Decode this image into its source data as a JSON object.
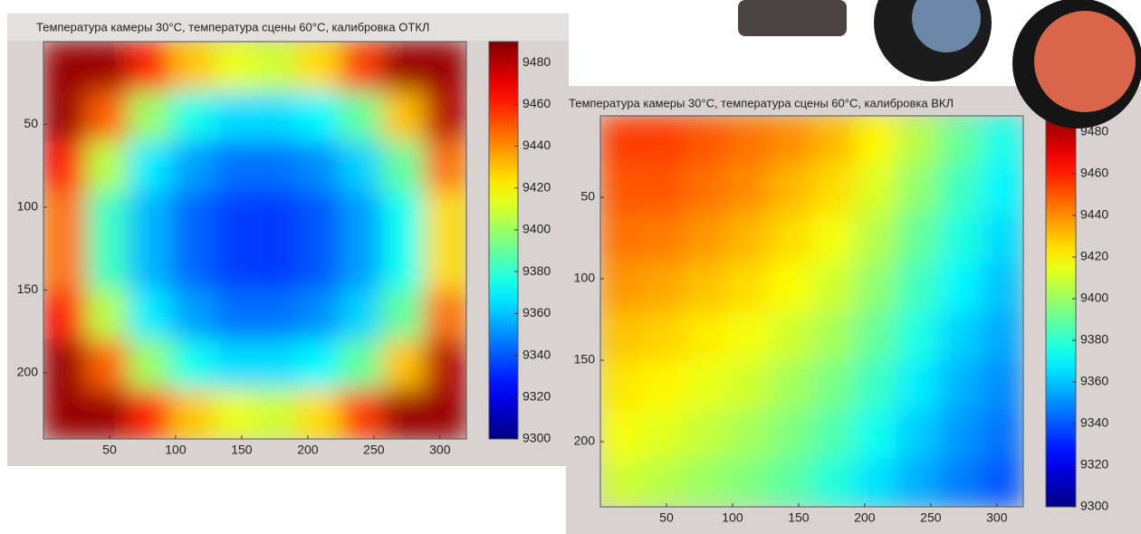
{
  "chart_data": [
    {
      "type": "heatmap",
      "title": "Температура камеры 30°C, температура сцены 60°C, калибровка ОТКЛ",
      "xlim": [
        0,
        320
      ],
      "xticks": [
        50,
        100,
        150,
        200,
        250,
        300
      ],
      "ylim": [
        0,
        240
      ],
      "yticks": [
        50,
        100,
        150,
        200
      ],
      "y_reversed": true,
      "colormap": "jet",
      "clim": [
        9300,
        9490
      ],
      "cticks": [
        9300,
        9320,
        9340,
        9360,
        9380,
        9400,
        9420,
        9440,
        9460,
        9480
      ],
      "values": [
        [
          9485,
          9485,
          9460,
          9430,
          9415,
          9410,
          9425,
          9455,
          9485,
          9485
        ],
        [
          9485,
          9448,
          9400,
          9375,
          9365,
          9365,
          9370,
          9390,
          9430,
          9480
        ],
        [
          9465,
          9405,
          9368,
          9354,
          9345,
          9345,
          9350,
          9363,
          9390,
          9445
        ],
        [
          9445,
          9383,
          9358,
          9343,
          9335,
          9334,
          9340,
          9353,
          9374,
          9425
        ],
        [
          9445,
          9383,
          9358,
          9343,
          9335,
          9334,
          9340,
          9353,
          9374,
          9425
        ],
        [
          9465,
          9405,
          9368,
          9354,
          9345,
          9345,
          9350,
          9363,
          9390,
          9445
        ],
        [
          9485,
          9448,
          9400,
          9375,
          9365,
          9365,
          9370,
          9390,
          9430,
          9480
        ],
        [
          9485,
          9485,
          9460,
          9430,
          9415,
          9410,
          9425,
          9455,
          9485,
          9485
        ]
      ]
    },
    {
      "type": "heatmap",
      "title": "Температура камеры 30°C, температура сцены 60°C, калибровка ВКЛ",
      "xlim": [
        0,
        320
      ],
      "xticks": [
        50,
        100,
        150,
        200,
        250,
        300
      ],
      "ylim": [
        0,
        240
      ],
      "yticks": [
        50,
        100,
        150,
        200
      ],
      "y_reversed": true,
      "colormap": "jet",
      "clim": [
        9300,
        9490
      ],
      "cticks": [
        9300,
        9320,
        9340,
        9360,
        9380,
        9400,
        9420,
        9440,
        9460,
        9480
      ],
      "values": [
        [
          9455,
          9455,
          9450,
          9445,
          9440,
          9432,
          9420,
          9405,
          9390,
          9375
        ],
        [
          9450,
          9450,
          9445,
          9440,
          9432,
          9425,
          9412,
          9398,
          9383,
          9370
        ],
        [
          9445,
          9443,
          9438,
          9432,
          9425,
          9417,
          9405,
          9390,
          9377,
          9365
        ],
        [
          9438,
          9435,
          9430,
          9425,
          9418,
          9410,
          9398,
          9383,
          9370,
          9360
        ],
        [
          9430,
          9427,
          9422,
          9417,
          9410,
          9402,
          9390,
          9376,
          9363,
          9355
        ],
        [
          9423,
          9420,
          9415,
          9410,
          9402,
          9394,
          9382,
          9368,
          9357,
          9350
        ],
        [
          9417,
          9413,
          9408,
          9402,
          9395,
          9386,
          9374,
          9362,
          9352,
          9345
        ],
        [
          9410,
          9405,
          9400,
          9395,
          9388,
          9378,
          9366,
          9356,
          9347,
          9340
        ]
      ]
    }
  ]
}
